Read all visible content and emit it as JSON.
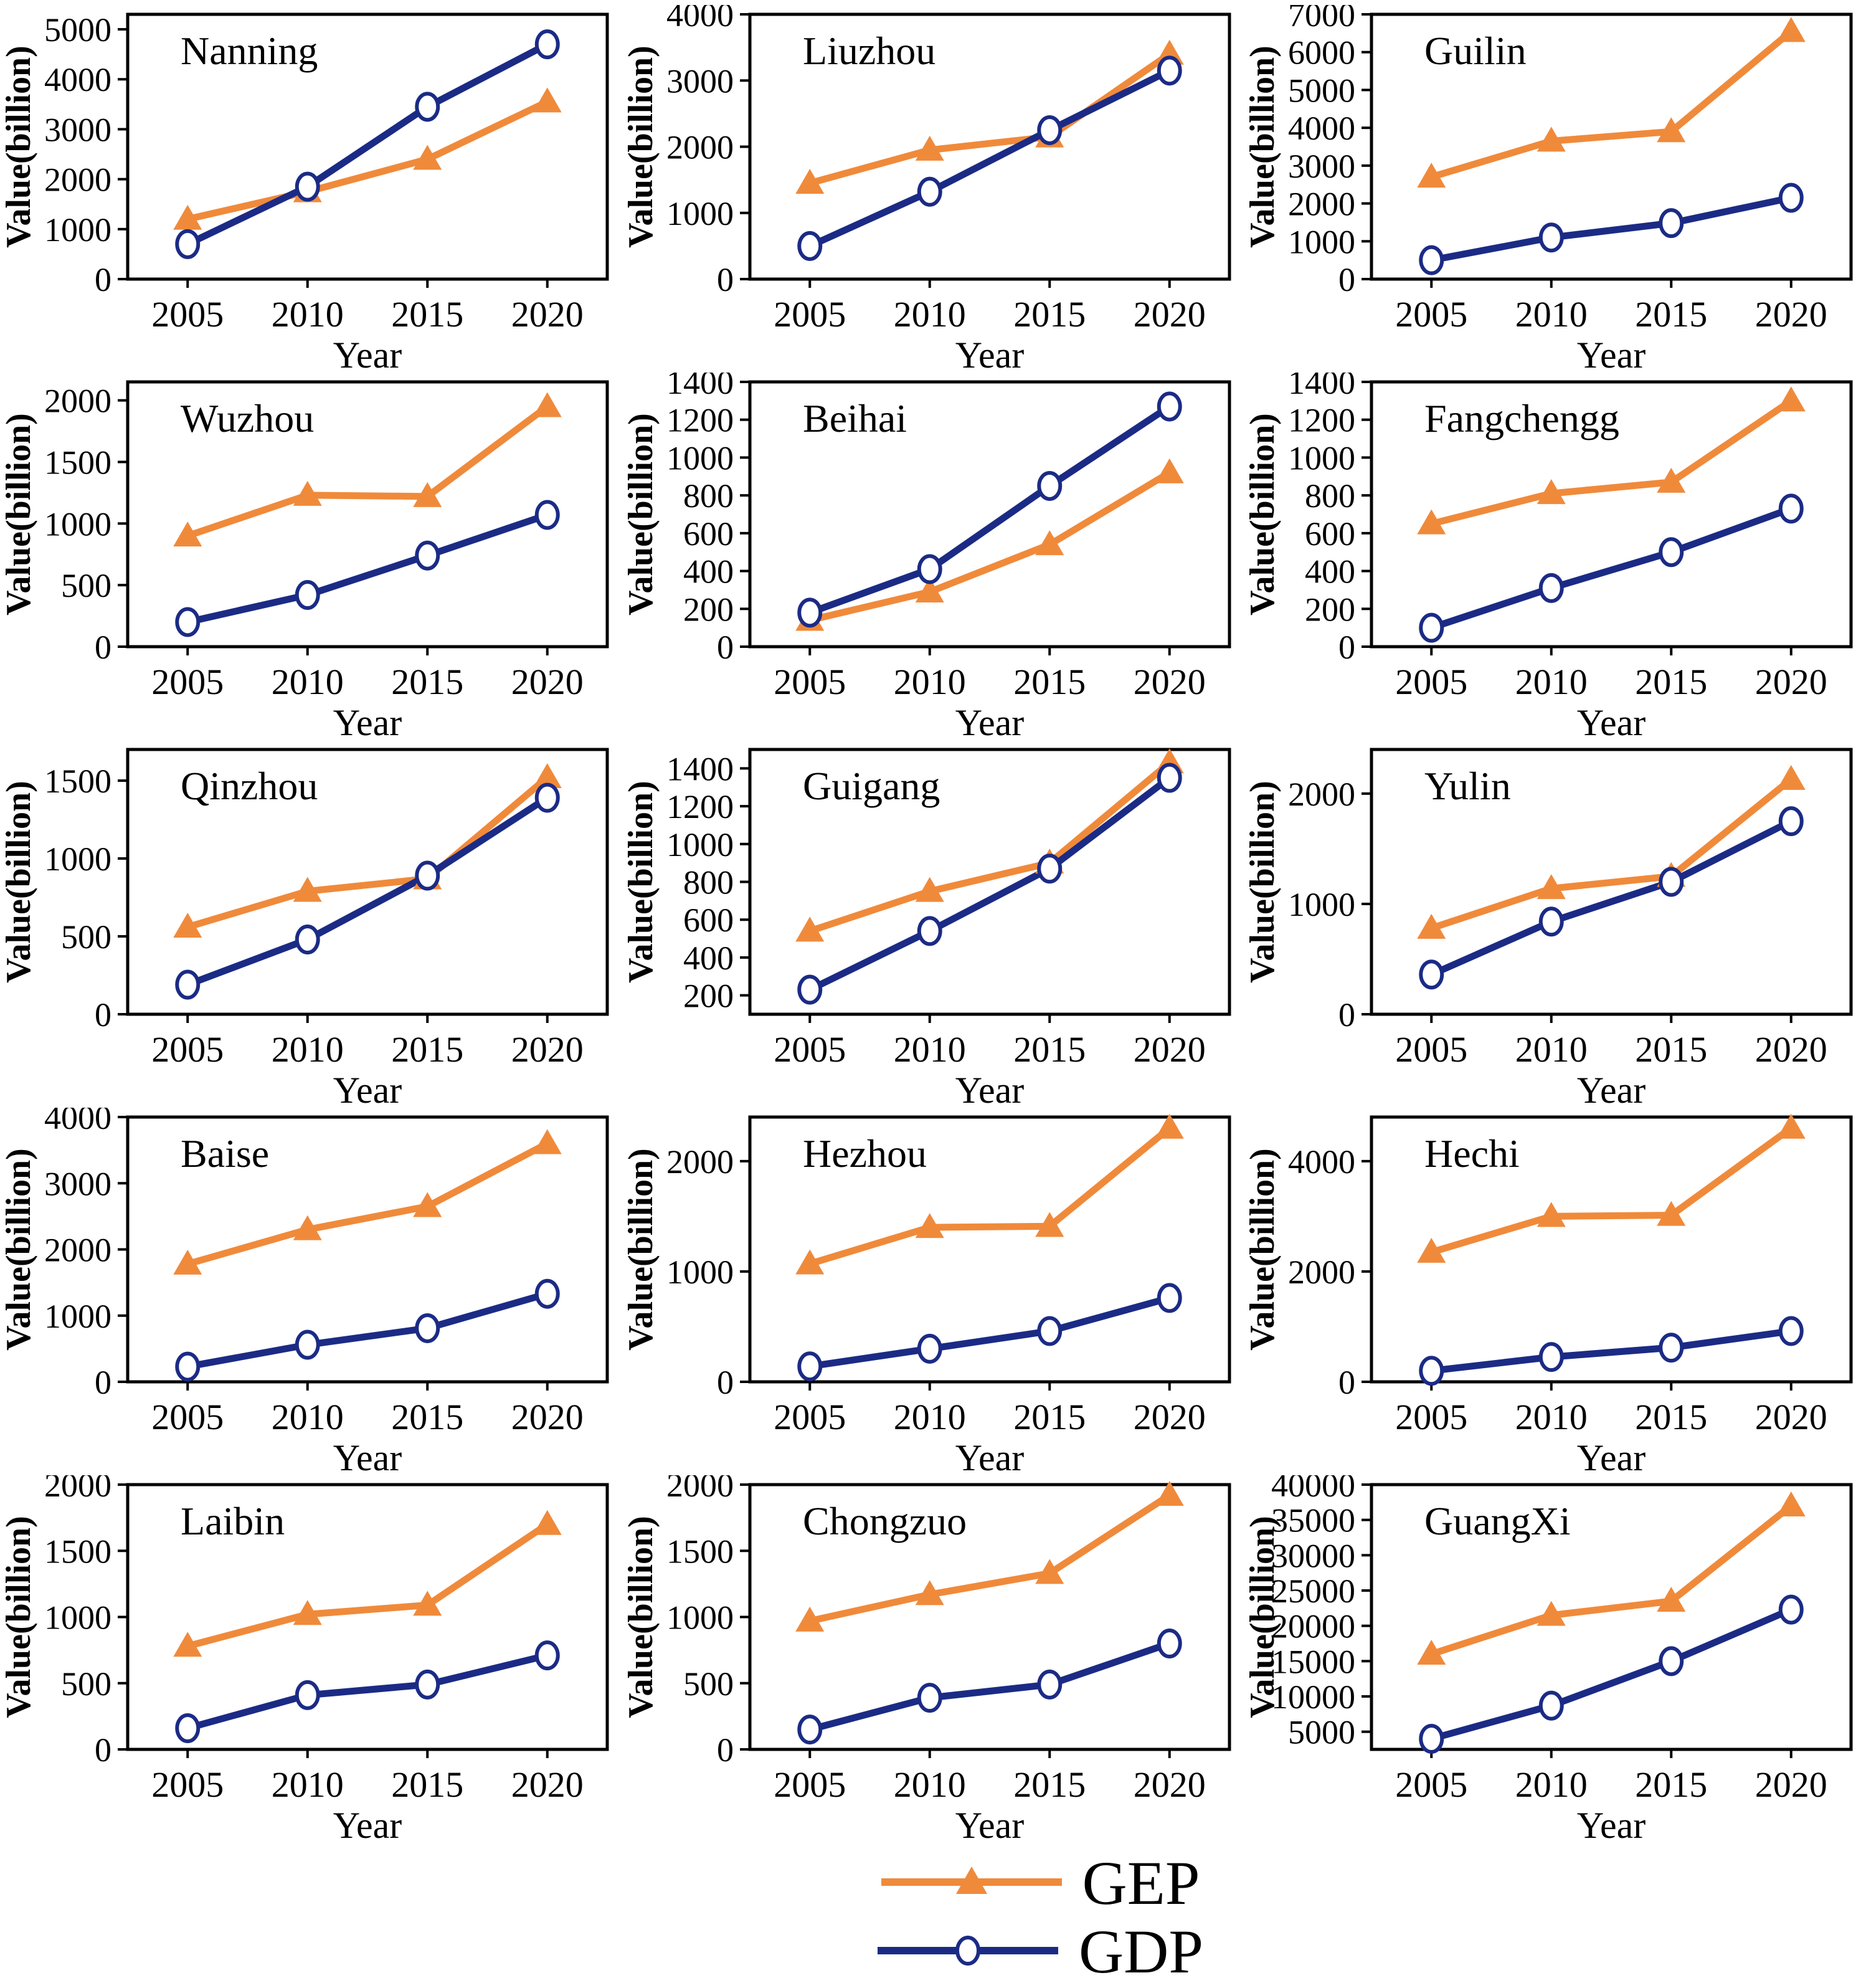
{
  "legend": {
    "items": [
      {
        "label": "GEP",
        "color": "#f08a3b",
        "marker": "triangle"
      },
      {
        "label": "GDP",
        "color": "#1b2b85",
        "marker": "open-circle"
      }
    ]
  },
  "axis": {
    "xlabel": "Year",
    "ylabel": "Value(billion)"
  },
  "chart_data": [
    {
      "type": "line",
      "title": "Nanning",
      "xlabel": "Year",
      "ylabel": "Value(billion)",
      "x": [
        2005,
        2010,
        2015,
        2020
      ],
      "xlim": [
        2002.5,
        2022.5
      ],
      "ylim": [
        0,
        5300
      ],
      "yticks": [
        0,
        1000,
        2000,
        3000,
        4000,
        5000
      ],
      "series": [
        {
          "name": "GEP",
          "values": [
            1200,
            1750,
            2400,
            3550
          ]
        },
        {
          "name": "GDP",
          "values": [
            700,
            1850,
            3450,
            4700
          ]
        }
      ]
    },
    {
      "type": "line",
      "title": "Liuzhou",
      "xlabel": "Year",
      "ylabel": "Value(billion)",
      "x": [
        2005,
        2010,
        2015,
        2020
      ],
      "xlim": [
        2002.5,
        2022.5
      ],
      "ylim": [
        0,
        4000
      ],
      "yticks": [
        0,
        1000,
        2000,
        3000,
        4000
      ],
      "series": [
        {
          "name": "GEP",
          "values": [
            1450,
            1950,
            2150,
            3400
          ]
        },
        {
          "name": "GDP",
          "values": [
            500,
            1320,
            2250,
            3150
          ]
        }
      ]
    },
    {
      "type": "line",
      "title": "Guilin",
      "xlabel": "Year",
      "ylabel": "Value(billion)",
      "x": [
        2005,
        2010,
        2015,
        2020
      ],
      "xlim": [
        2002.5,
        2022.5
      ],
      "ylim": [
        0,
        7000
      ],
      "yticks": [
        0,
        1000,
        2000,
        3000,
        4000,
        5000,
        6000,
        7000
      ],
      "series": [
        {
          "name": "GEP",
          "values": [
            2700,
            3650,
            3900,
            6550
          ]
        },
        {
          "name": "GDP",
          "values": [
            500,
            1100,
            1480,
            2150
          ]
        }
      ]
    },
    {
      "type": "line",
      "title": "Wuzhou",
      "xlabel": "Year",
      "ylabel": "Value(billion)",
      "x": [
        2005,
        2010,
        2015,
        2020
      ],
      "xlim": [
        2002.5,
        2022.5
      ],
      "ylim": [
        0,
        2150
      ],
      "yticks": [
        0,
        500,
        1000,
        1500,
        2000
      ],
      "series": [
        {
          "name": "GEP",
          "values": [
            900,
            1230,
            1220,
            1950
          ]
        },
        {
          "name": "GDP",
          "values": [
            200,
            420,
            740,
            1070
          ]
        }
      ]
    },
    {
      "type": "line",
      "title": "Beihai",
      "xlabel": "Year",
      "ylabel": "Value(billion)",
      "x": [
        2005,
        2010,
        2015,
        2020
      ],
      "xlim": [
        2002.5,
        2022.5
      ],
      "ylim": [
        0,
        1400
      ],
      "yticks": [
        0,
        200,
        400,
        600,
        800,
        1000,
        1200,
        1400
      ],
      "series": [
        {
          "name": "GEP",
          "values": [
            140,
            290,
            540,
            920
          ]
        },
        {
          "name": "GDP",
          "values": [
            180,
            410,
            850,
            1270
          ]
        }
      ]
    },
    {
      "type": "line",
      "title": "Fangchengg",
      "xlabel": "Year",
      "ylabel": "Value(billion)",
      "x": [
        2005,
        2010,
        2015,
        2020
      ],
      "xlim": [
        2002.5,
        2022.5
      ],
      "ylim": [
        0,
        1400
      ],
      "yticks": [
        0,
        200,
        400,
        600,
        800,
        1000,
        1200,
        1400
      ],
      "series": [
        {
          "name": "GEP",
          "values": [
            650,
            810,
            870,
            1300
          ]
        },
        {
          "name": "GDP",
          "values": [
            100,
            310,
            500,
            730
          ]
        }
      ]
    },
    {
      "type": "line",
      "title": "Qinzhou",
      "xlabel": "Year",
      "ylabel": "Value(billion)",
      "x": [
        2005,
        2010,
        2015,
        2020
      ],
      "xlim": [
        2002.5,
        2022.5
      ],
      "ylim": [
        0,
        1700
      ],
      "yticks": [
        0,
        500,
        1000,
        1500
      ],
      "series": [
        {
          "name": "GEP",
          "values": [
            560,
            790,
            870,
            1520
          ]
        },
        {
          "name": "GDP",
          "values": [
            190,
            480,
            890,
            1390
          ]
        }
      ]
    },
    {
      "type": "line",
      "title": "Guigang",
      "xlabel": "Year",
      "ylabel": "Value(billion)",
      "x": [
        2005,
        2010,
        2015,
        2020
      ],
      "xlim": [
        2002.5,
        2022.5
      ],
      "ylim": [
        100,
        1500
      ],
      "yticks": [
        200,
        400,
        600,
        800,
        1000,
        1200,
        1400
      ],
      "series": [
        {
          "name": "GEP",
          "values": [
            540,
            750,
            900,
            1430
          ]
        },
        {
          "name": "GDP",
          "values": [
            230,
            540,
            870,
            1350
          ]
        }
      ]
    },
    {
      "type": "line",
      "title": "Yulin",
      "xlabel": "Year",
      "ylabel": "Value(billion)",
      "x": [
        2005,
        2010,
        2015,
        2020
      ],
      "xlim": [
        2002.5,
        2022.5
      ],
      "ylim": [
        0,
        2400
      ],
      "yticks": [
        0,
        1000,
        2000
      ],
      "series": [
        {
          "name": "GEP",
          "values": [
            780,
            1140,
            1250,
            2130
          ]
        },
        {
          "name": "GDP",
          "values": [
            360,
            840,
            1200,
            1750
          ]
        }
      ]
    },
    {
      "type": "line",
      "title": "Baise",
      "xlabel": "Year",
      "ylabel": "Value(billion)",
      "x": [
        2005,
        2010,
        2015,
        2020
      ],
      "xlim": [
        2002.5,
        2022.5
      ],
      "ylim": [
        0,
        4000
      ],
      "yticks": [
        0,
        1000,
        2000,
        3000,
        4000
      ],
      "series": [
        {
          "name": "GEP",
          "values": [
            1780,
            2300,
            2650,
            3600
          ]
        },
        {
          "name": "GDP",
          "values": [
            230,
            560,
            810,
            1330
          ]
        }
      ]
    },
    {
      "type": "line",
      "title": "Hezhou",
      "xlabel": "Year",
      "ylabel": "Value(billion)",
      "x": [
        2005,
        2010,
        2015,
        2020
      ],
      "xlim": [
        2002.5,
        2022.5
      ],
      "ylim": [
        0,
        2400
      ],
      "yticks": [
        0,
        1000,
        2000
      ],
      "series": [
        {
          "name": "GEP",
          "values": [
            1070,
            1400,
            1410,
            2300
          ]
        },
        {
          "name": "GDP",
          "values": [
            140,
            300,
            460,
            760
          ]
        }
      ]
    },
    {
      "type": "line",
      "title": "Hechi",
      "xlabel": "Year",
      "ylabel": "Value(billion)",
      "x": [
        2005,
        2010,
        2015,
        2020
      ],
      "xlim": [
        2002.5,
        2022.5
      ],
      "ylim": [
        0,
        4800
      ],
      "yticks": [
        0,
        2000,
        4000
      ],
      "series": [
        {
          "name": "GEP",
          "values": [
            2350,
            3000,
            3020,
            4600
          ]
        },
        {
          "name": "GDP",
          "values": [
            200,
            450,
            620,
            920
          ]
        }
      ]
    },
    {
      "type": "line",
      "title": "Laibin",
      "xlabel": "Year",
      "ylabel": "Value(billion)",
      "x": [
        2005,
        2010,
        2015,
        2020
      ],
      "xlim": [
        2002.5,
        2022.5
      ],
      "ylim": [
        0,
        2000
      ],
      "yticks": [
        0,
        500,
        1000,
        1500,
        2000
      ],
      "series": [
        {
          "name": "GEP",
          "values": [
            780,
            1020,
            1090,
            1700
          ]
        },
        {
          "name": "GDP",
          "values": [
            160,
            410,
            490,
            710
          ]
        }
      ]
    },
    {
      "type": "line",
      "title": "Chongzuo",
      "xlabel": "Year",
      "ylabel": "Value(billion)",
      "x": [
        2005,
        2010,
        2015,
        2020
      ],
      "xlim": [
        2002.5,
        2022.5
      ],
      "ylim": [
        0,
        2000
      ],
      "yticks": [
        0,
        500,
        1000,
        1500,
        2000
      ],
      "series": [
        {
          "name": "GEP",
          "values": [
            970,
            1170,
            1330,
            1920
          ]
        },
        {
          "name": "GDP",
          "values": [
            150,
            390,
            490,
            800
          ]
        }
      ]
    },
    {
      "type": "line",
      "title": "GuangXi",
      "xlabel": "Year",
      "ylabel": "Value(billion)",
      "x": [
        2005,
        2010,
        2015,
        2020
      ],
      "xlim": [
        2002.5,
        2022.5
      ],
      "ylim": [
        2500,
        40000
      ],
      "yticks": [
        5000,
        10000,
        15000,
        20000,
        25000,
        30000,
        35000,
        40000
      ],
      "series": [
        {
          "name": "GEP",
          "values": [
            16000,
            21500,
            23500,
            37000
          ]
        },
        {
          "name": "GDP",
          "values": [
            4000,
            8700,
            15000,
            22300
          ]
        }
      ]
    }
  ]
}
